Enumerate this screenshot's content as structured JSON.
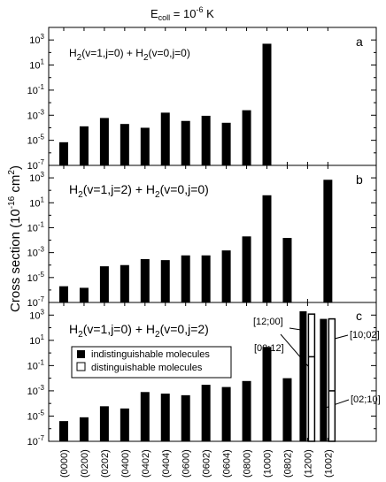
{
  "title_base": "E",
  "title_sub": "coll",
  "title_mid": " = 10",
  "title_exp": "-6",
  "title_unit": " K",
  "ylabel_main": "Cross section (10",
  "ylabel_exp": "-16",
  "ylabel_unit": " cm",
  "ylabel_sq": "2",
  "ylabel_close": ")",
  "legend": {
    "filled": "indistinguishable molecules",
    "open": "distinguishable molecules"
  },
  "colors": {
    "bar": "#000000",
    "open_bar_fill": "#ffffff",
    "axis": "#000000"
  },
  "chart_data": [
    {
      "type": "bar",
      "panel_letter": "a",
      "label_parts": [
        "H",
        "2",
        "(v=1,j=0) + H",
        "2",
        "(v=0,j=0)"
      ],
      "categories": [
        "(0000)",
        "(0200)",
        "(0202)",
        "(0400)",
        "(0402)",
        "(0404)",
        "(0600)",
        "(0602)",
        "(0604)",
        "(0800)",
        "(1000)"
      ],
      "series": [
        {
          "values": [
            7e-06,
            0.00013,
            0.0006,
            0.0002,
            0.0001,
            0.0016,
            0.00035,
            0.0009,
            0.00025,
            0.0025,
            500
          ]
        }
      ],
      "yscale": "log",
      "ylim": [
        1e-07,
        10000.0
      ],
      "yticks": [
        "10-7",
        "10-5",
        "10-3",
        "10-1",
        "101",
        "103"
      ]
    },
    {
      "type": "bar",
      "panel_letter": "b",
      "label_parts": [
        "H",
        "2",
        "(v=1,j=2) + H",
        "2",
        "(v=0,j=0)"
      ],
      "categories": [
        "(0000)",
        "(0200)",
        "(0202)",
        "(0400)",
        "(0402)",
        "(0404)",
        "(0600)",
        "(0602)",
        "(0604)",
        "(0800)",
        "(1000)",
        "(0802)",
        "(1002)"
      ],
      "series": [
        {
          "values": [
            2e-06,
            1.5e-06,
            8e-05,
            0.0001,
            0.0003,
            0.00025,
            0.0006,
            0.0006,
            0.0015,
            0.02,
            40,
            0.015,
            700
          ]
        }
      ],
      "yscale": "log",
      "ylim": [
        1e-07,
        10000.0
      ],
      "yticks": [
        "10-7",
        "10-5",
        "10-3",
        "10-1",
        "101",
        "103"
      ]
    },
    {
      "type": "bar",
      "panel_letter": "c",
      "label_parts": [
        "H",
        "2",
        "(v=1,j=0) + H",
        "2",
        "(v=0,j=2)"
      ],
      "categories": [
        "(0000)",
        "(0200)",
        "(0202)",
        "(0400)",
        "(0402)",
        "(0404)",
        "(0600)",
        "(0602)",
        "(0604)",
        "(0800)",
        "(1000)",
        "(0802)",
        "(1200)",
        "(1002)"
      ],
      "series": [
        {
          "name": "indistinguishable molecules",
          "values": [
            4e-06,
            8e-06,
            6e-05,
            4e-05,
            0.0008,
            0.0006,
            0.00045,
            0.003,
            0.002,
            0.006,
            3,
            0.01,
            2000,
            500
          ]
        },
        {
          "name": "distinguishable molecules",
          "values": [
            null,
            null,
            null,
            null,
            null,
            null,
            null,
            null,
            null,
            null,
            null,
            null,
            1200,
            500
          ]
        }
      ],
      "split_values": [
        {
          "category": "(1200)",
          "annotation": "[00;12]",
          "value": 0.5
        },
        {
          "category": "(1002)",
          "annotation": "[02;10]",
          "value": 0.001
        }
      ],
      "annotations": [
        "[12;00]",
        "[00;12]",
        "[10;02]",
        "[02;10]"
      ],
      "yscale": "log",
      "ylim": [
        1e-07,
        10000.0
      ],
      "yticks": [
        "10-7",
        "10-5",
        "10-3",
        "10-1",
        "101",
        "103"
      ]
    }
  ]
}
